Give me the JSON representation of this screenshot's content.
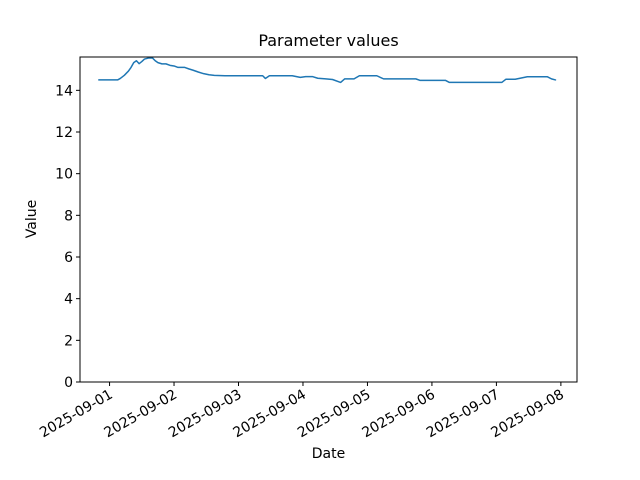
{
  "chart_data": {
    "type": "line",
    "title": "Parameter values",
    "xlabel": "Date",
    "ylabel": "Value",
    "grid": false,
    "legend": null,
    "line_color": "#1f77b4",
    "axis_color": "#000000",
    "background_color": "#ffffff",
    "ylim": [
      0,
      15.6
    ],
    "y_ticks": [
      0,
      2,
      4,
      6,
      8,
      10,
      12,
      14
    ],
    "x_ticks": [
      "2025-09-01",
      "2025-09-02",
      "2025-09-03",
      "2025-09-04",
      "2025-09-05",
      "2025-09-06",
      "2025-09-07",
      "2025-09-08"
    ],
    "x_tick_rotation_deg": 30,
    "xlim": [
      "2025-08-31 13:00",
      "2025-09-08 06:00"
    ],
    "series": [
      {
        "name": "parameter-values",
        "x": [
          "2025-08-31 20:00",
          "2025-09-01 00:00",
          "2025-09-01 03:00",
          "2025-09-01 04:00",
          "2025-09-01 05:30",
          "2025-09-01 07:00",
          "2025-09-01 08:00",
          "2025-09-01 09:00",
          "2025-09-01 10:00",
          "2025-09-01 11:00",
          "2025-09-01 12:00",
          "2025-09-01 13:00",
          "2025-09-01 14:30",
          "2025-09-01 16:00",
          "2025-09-01 17:00",
          "2025-09-01 18:00",
          "2025-09-01 19:30",
          "2025-09-01 21:00",
          "2025-09-01 22:30",
          "2025-09-02 00:00",
          "2025-09-02 01:30",
          "2025-09-02 04:00",
          "2025-09-02 05:30",
          "2025-09-02 07:00",
          "2025-09-02 09:00",
          "2025-09-02 11:00",
          "2025-09-02 13:00",
          "2025-09-02 15:00",
          "2025-09-02 19:00",
          "2025-09-03 00:00",
          "2025-09-03 06:00",
          "2025-09-03 09:00",
          "2025-09-03 10:00",
          "2025-09-03 11:30",
          "2025-09-03 16:00",
          "2025-09-03 20:00",
          "2025-09-03 23:00",
          "2025-09-04 01:00",
          "2025-09-04 03:30",
          "2025-09-04 05:30",
          "2025-09-04 08:30",
          "2025-09-04 11:00",
          "2025-09-04 14:00",
          "2025-09-04 15:30",
          "2025-09-04 19:00",
          "2025-09-04 21:00",
          "2025-09-05 00:00",
          "2025-09-05 03:30",
          "2025-09-05 06:00",
          "2025-09-05 12:00",
          "2025-09-05 18:00",
          "2025-09-05 19:30",
          "2025-09-06 00:00",
          "2025-09-06 05:00",
          "2025-09-06 06:30",
          "2025-09-06 12:00",
          "2025-09-06 18:00",
          "2025-09-07 00:00",
          "2025-09-07 02:00",
          "2025-09-07 03:30",
          "2025-09-07 07:00",
          "2025-09-07 11:30",
          "2025-09-07 16:00",
          "2025-09-07 19:00",
          "2025-09-07 20:30",
          "2025-09-07 22:00"
        ],
        "y": [
          14.5,
          14.5,
          14.5,
          14.57,
          14.72,
          14.92,
          15.1,
          15.33,
          15.42,
          15.28,
          15.38,
          15.5,
          15.55,
          15.55,
          15.42,
          15.33,
          15.27,
          15.27,
          15.2,
          15.17,
          15.1,
          15.1,
          15.03,
          14.97,
          14.88,
          14.8,
          14.75,
          14.72,
          14.7,
          14.7,
          14.7,
          14.7,
          14.57,
          14.7,
          14.7,
          14.7,
          14.62,
          14.66,
          14.66,
          14.58,
          14.55,
          14.52,
          14.38,
          14.55,
          14.55,
          14.7,
          14.7,
          14.7,
          14.55,
          14.55,
          14.55,
          14.48,
          14.48,
          14.48,
          14.38,
          14.38,
          14.38,
          14.38,
          14.38,
          14.53,
          14.53,
          14.65,
          14.65,
          14.65,
          14.55,
          14.5
        ]
      }
    ]
  }
}
